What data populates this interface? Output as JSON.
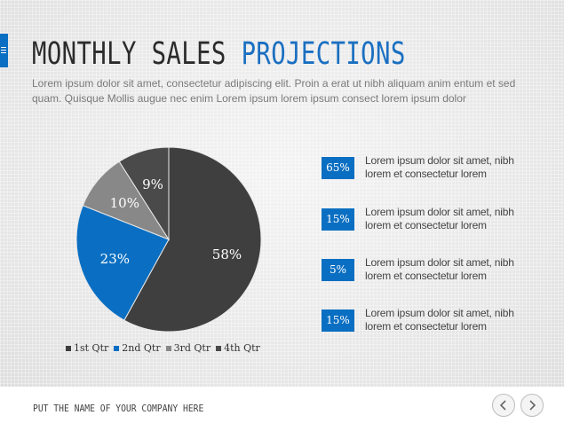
{
  "header": {
    "title_dark": "MONTHLY SALES",
    "title_accent": "PROJECTIONS",
    "subtitle": "Lorem ipsum dolor sit amet, consectetur adipiscing elit. Proin a erat ut nibh aliquam anim entum et sed quam. Quisque Mollis augue  nec enim Lorem ipsum lorem ipsum consect lorem ipsum dolor"
  },
  "colors": {
    "accent": "#0a6fc2",
    "dark": "#3f3f3f",
    "gray": "#888888",
    "darker": "#4a4a4a"
  },
  "chart_data": {
    "type": "pie",
    "categories": [
      "1st Qtr",
      "2nd Qtr",
      "3rd Qtr",
      "4th Qtr"
    ],
    "values": [
      58,
      23,
      10,
      9
    ],
    "labels": [
      "58%",
      "23%",
      "10%",
      "9%"
    ],
    "colors": [
      "#3f3f3f",
      "#0a6fc2",
      "#888888",
      "#4a4a4a"
    ],
    "legend_position": "bottom"
  },
  "stats": [
    {
      "value": "65%",
      "text": "Lorem ipsum dolor sit amet, nibh lorem et consectetur lorem"
    },
    {
      "value": "15%",
      "text": "Lorem ipsum dolor sit amet, nibh lorem et consectetur lorem"
    },
    {
      "value": "5%",
      "text": "Lorem ipsum dolor sit amet, nibh lorem et consectetur lorem"
    },
    {
      "value": "15%",
      "text": "Lorem ipsum dolor sit amet, nibh lorem et consectetur lorem"
    }
  ],
  "footer": {
    "company": "PUT THE NAME OF YOUR COMPANY HERE",
    "prev_icon": "chevron-left-icon",
    "next_icon": "chevron-right-icon"
  }
}
